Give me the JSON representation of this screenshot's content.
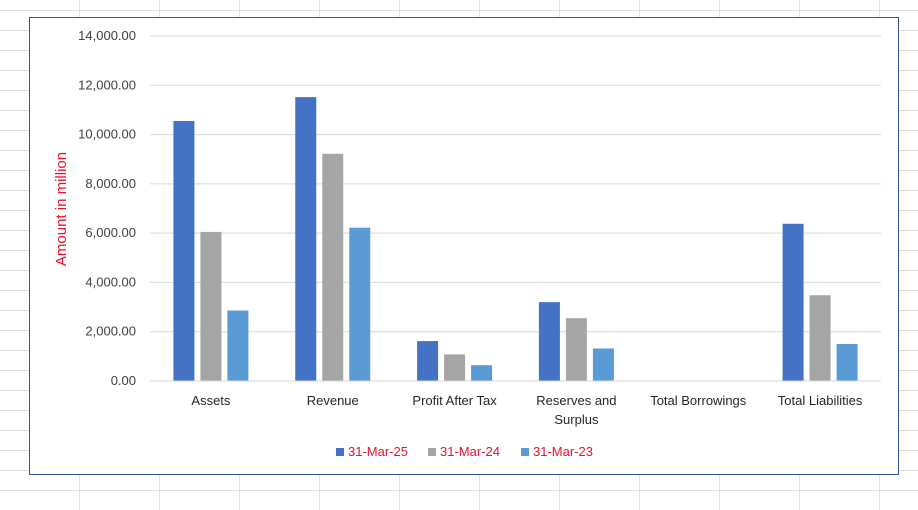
{
  "chart_data": {
    "type": "bar",
    "title": "",
    "xlabel": "",
    "ylabel": "Amount in million",
    "ylim": [
      0,
      14000
    ],
    "yticks": [
      "0.00",
      "2,000.00",
      "4,000.00",
      "6,000.00",
      "8,000.00",
      "10,000.00",
      "12,000.00",
      "14,000.00"
    ],
    "grid": true,
    "legend_position": "bottom",
    "categories": [
      [
        "Assets"
      ],
      [
        "Revenue"
      ],
      [
        "Profit After Tax"
      ],
      [
        "Reserves and",
        "Surplus"
      ],
      [
        "Total Borrowings"
      ],
      [
        "Total Liabilities"
      ]
    ],
    "series": [
      {
        "name": "31-Mar-25",
        "color": "#4472c4",
        "values": [
          10550,
          11520,
          1620,
          3200,
          0,
          6380
        ]
      },
      {
        "name": "31-Mar-24",
        "color": "#a5a5a5",
        "values": [
          6050,
          9220,
          1080,
          2550,
          0,
          3480
        ]
      },
      {
        "name": "31-Mar-23",
        "color": "#5b9bd5",
        "values": [
          2860,
          6220,
          640,
          1320,
          0,
          1500
        ]
      }
    ]
  }
}
